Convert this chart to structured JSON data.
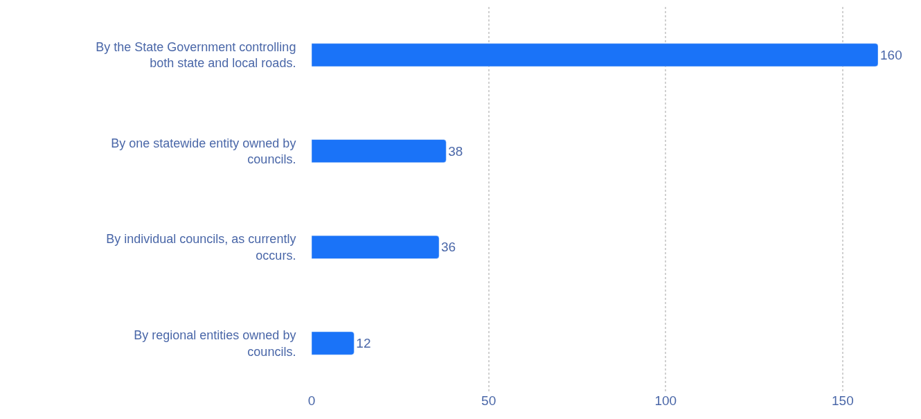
{
  "chart_data": {
    "type": "bar",
    "orientation": "horizontal",
    "categories": [
      "By the State Government controlling both state and local roads.",
      "By one statewide entity owned by councils.",
      "By individual councils, as currently occurs.",
      "By regional entities owned by councils."
    ],
    "values": [
      160,
      38,
      36,
      12
    ],
    "color": "#1a73f8",
    "xlim": [
      0,
      160
    ],
    "xticks": [
      0,
      50,
      100,
      150
    ],
    "grid": "x",
    "data_labels": true,
    "legend": false
  }
}
